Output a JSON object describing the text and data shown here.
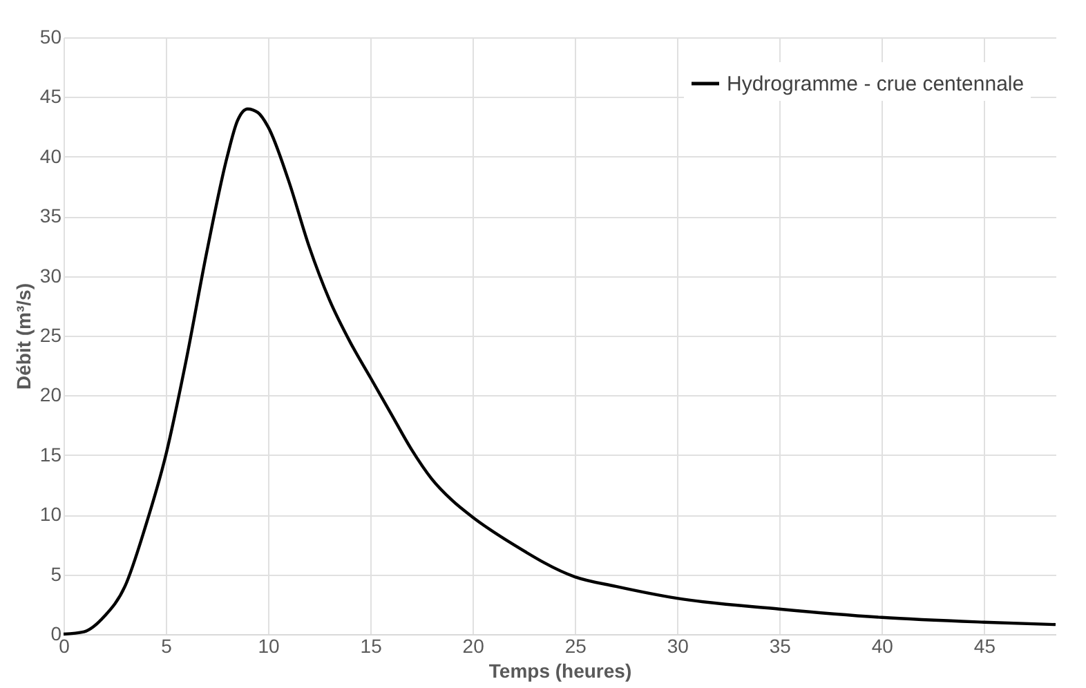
{
  "chart_data": {
    "type": "line",
    "xlabel": "Temps (heures)",
    "ylabel": "Débit (m³/s)",
    "xlim": [
      0,
      48.5
    ],
    "xticks": [
      0,
      5,
      10,
      15,
      20,
      25,
      30,
      35,
      40,
      45
    ],
    "ylim": [
      0,
      50
    ],
    "yticks": [
      0,
      5,
      10,
      15,
      20,
      25,
      30,
      35,
      40,
      45,
      50
    ],
    "grid": true,
    "legend": "top right",
    "line_style": "solid",
    "marker": "none",
    "series": [
      {
        "name": "Hydrogramme - crue centennale",
        "color": "#000000",
        "x": [
          0,
          1,
          2,
          3,
          4,
          5,
          6,
          7,
          8,
          8.5,
          9,
          9.5,
          10,
          11,
          12,
          13,
          14,
          15,
          16,
          17,
          18,
          19,
          20,
          22,
          25,
          27,
          30,
          35,
          40,
          45,
          48.5
        ],
        "values": [
          0,
          0.2,
          1.5,
          4,
          9,
          15,
          23,
          32,
          40,
          43,
          44,
          43.7,
          42.5,
          38,
          32.5,
          28,
          24.5,
          21.5,
          18.5,
          15.5,
          13,
          11.2,
          9.8,
          7.5,
          4.8,
          4,
          3,
          2.1,
          1.4,
          1,
          0.8
        ]
      }
    ]
  }
}
